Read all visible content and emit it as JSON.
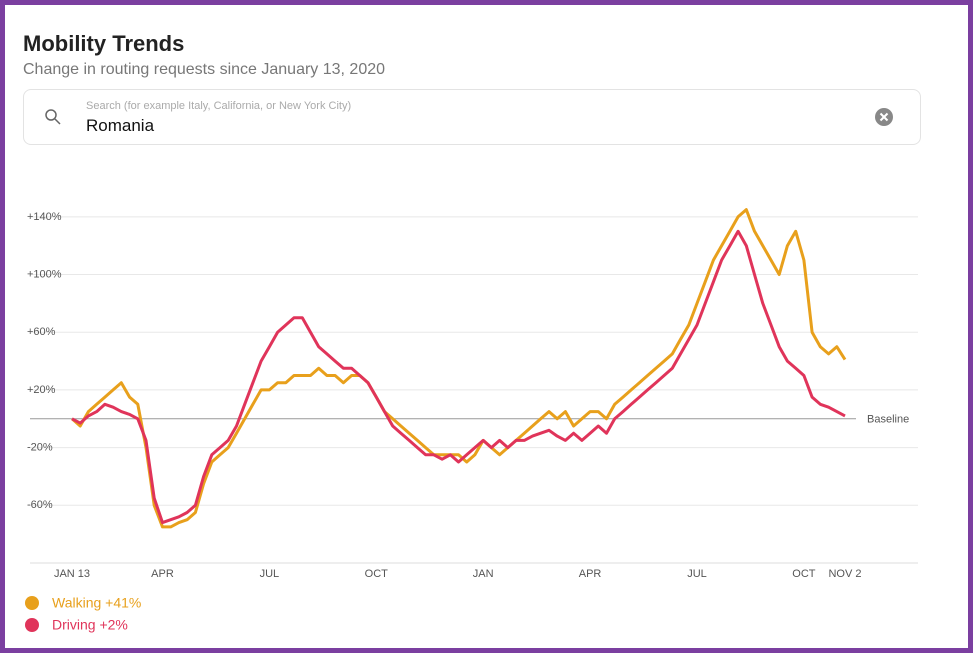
{
  "header": {
    "title": "Mobility Trends",
    "subtitle": "Change in routing requests since January 13, 2020"
  },
  "search": {
    "placeholder": "Search (for example Italy, California, or New York City)",
    "value": "Romania"
  },
  "chart_data": {
    "type": "line",
    "categories": [
      "JAN 13",
      null,
      null,
      null,
      null,
      null,
      null,
      null,
      null,
      null,
      null,
      "APR",
      null,
      null,
      null,
      null,
      null,
      null,
      null,
      null,
      null,
      null,
      null,
      null,
      "JUL",
      null,
      null,
      null,
      null,
      null,
      null,
      null,
      null,
      null,
      null,
      null,
      null,
      "OCT",
      null,
      null,
      null,
      null,
      null,
      null,
      null,
      null,
      null,
      null,
      null,
      null,
      "JAN",
      null,
      null,
      null,
      null,
      null,
      null,
      null,
      null,
      null,
      null,
      null,
      null,
      "APR",
      null,
      null,
      null,
      null,
      null,
      null,
      null,
      null,
      null,
      null,
      null,
      null,
      "JUL",
      null,
      null,
      null,
      null,
      null,
      null,
      null,
      null,
      null,
      null,
      null,
      null,
      "OCT",
      null,
      null,
      null,
      null,
      "NOV 2"
    ],
    "series": [
      {
        "name": "Walking +41%",
        "color": "#e8a01c",
        "values": [
          0,
          -5,
          5,
          10,
          15,
          20,
          25,
          15,
          10,
          -20,
          -60,
          -75,
          -75,
          -72,
          -70,
          -65,
          -45,
          -30,
          -25,
          -20,
          -10,
          0,
          10,
          20,
          20,
          25,
          25,
          30,
          30,
          30,
          35,
          30,
          30,
          25,
          30,
          30,
          25,
          15,
          5,
          0,
          -5,
          -10,
          -15,
          -20,
          -25,
          -25,
          -25,
          -25,
          -30,
          -25,
          -15,
          -20,
          -25,
          -20,
          -15,
          -10,
          -5,
          0,
          5,
          0,
          5,
          -5,
          0,
          5,
          5,
          0,
          10,
          15,
          20,
          25,
          30,
          35,
          40,
          45,
          55,
          65,
          80,
          95,
          110,
          120,
          130,
          140,
          145,
          130,
          120,
          110,
          100,
          120,
          130,
          110,
          60,
          50,
          45,
          50,
          41
        ]
      },
      {
        "name": "Driving +2%",
        "color": "#e0345a",
        "values": [
          0,
          -3,
          2,
          5,
          10,
          8,
          5,
          3,
          0,
          -15,
          -55,
          -72,
          -70,
          -68,
          -65,
          -60,
          -40,
          -25,
          -20,
          -15,
          -5,
          10,
          25,
          40,
          50,
          60,
          65,
          70,
          70,
          60,
          50,
          45,
          40,
          35,
          35,
          30,
          25,
          15,
          5,
          -5,
          -10,
          -15,
          -20,
          -25,
          -25,
          -28,
          -25,
          -30,
          -25,
          -20,
          -15,
          -20,
          -15,
          -20,
          -15,
          -15,
          -12,
          -10,
          -8,
          -12,
          -15,
          -10,
          -15,
          -10,
          -5,
          -10,
          0,
          5,
          10,
          15,
          20,
          25,
          30,
          35,
          45,
          55,
          65,
          80,
          95,
          110,
          120,
          130,
          120,
          100,
          80,
          65,
          50,
          40,
          35,
          30,
          15,
          10,
          8,
          5,
          2
        ]
      }
    ],
    "ylim": [
      -100,
      160
    ],
    "yticks": [
      {
        "value": 140,
        "label": "+140%"
      },
      {
        "value": 100,
        "label": "+100%"
      },
      {
        "value": 60,
        "label": "+60%"
      },
      {
        "value": 20,
        "label": "+20%"
      },
      {
        "value": -20,
        "label": "-20%"
      },
      {
        "value": -60,
        "label": "-60%"
      }
    ],
    "baseline": {
      "value": 0,
      "label": "Baseline"
    },
    "grid": true
  }
}
